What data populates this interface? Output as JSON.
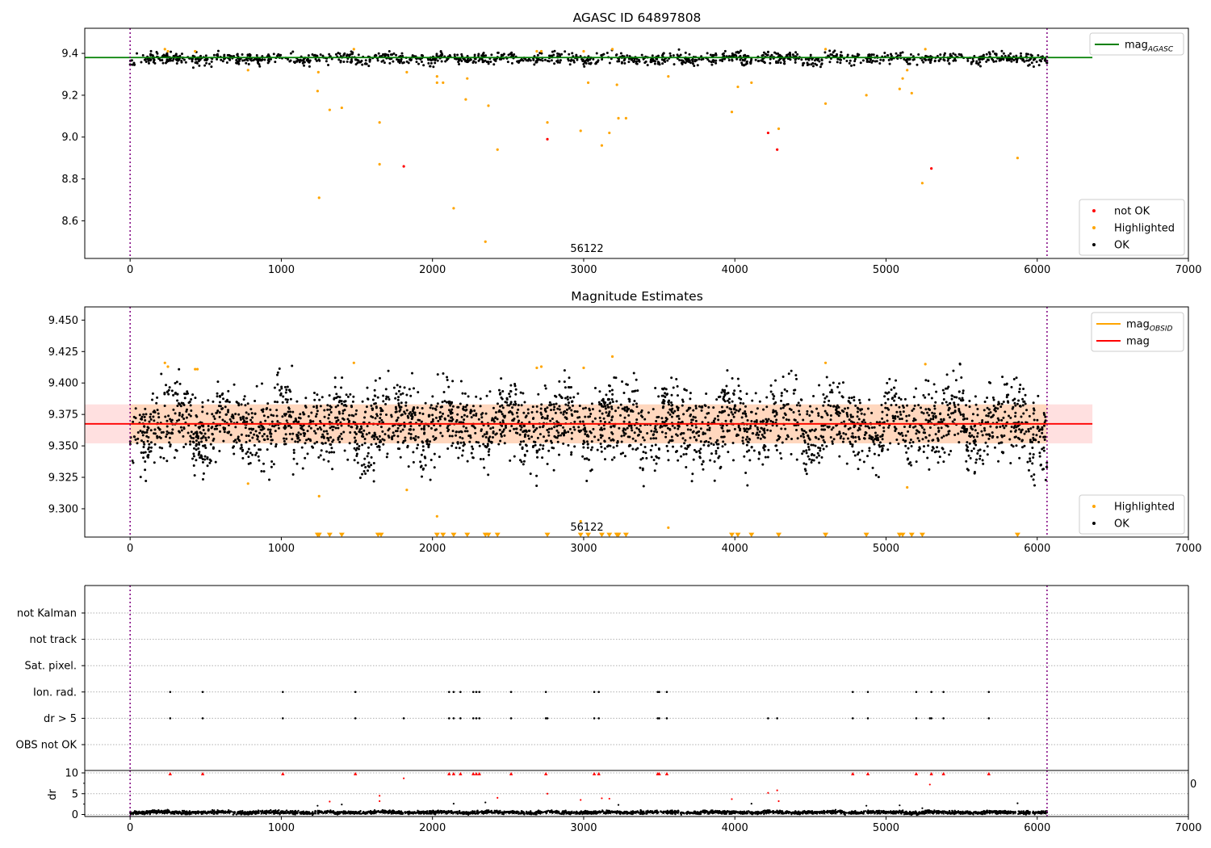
{
  "chart_data": [
    {
      "type": "scatter",
      "title": "AGASC ID 64897808",
      "xlim": [
        -300,
        7000
      ],
      "ylim": [
        8.42,
        9.52
      ],
      "xticks": [
        0,
        1000,
        2000,
        3000,
        4000,
        5000,
        6000,
        7000
      ],
      "yticks": [
        8.6,
        8.8,
        9.0,
        9.2,
        9.4
      ],
      "vlines": [
        0,
        6065
      ],
      "annotation": "56122",
      "lines": [
        {
          "name": "mag_AGASC",
          "name_main": "mag",
          "name_sub": "AGASC",
          "y": 9.38,
          "x": [
            -300,
            6365
          ],
          "color": "#008000"
        }
      ],
      "legends": [
        {
          "entries": [
            {
              "label": "mag",
              "sub": "AGASC",
              "kind": "line",
              "color": "#008000"
            }
          ]
        },
        {
          "entries": [
            {
              "label": "not OK",
              "kind": "dot",
              "color": "#ff0000"
            },
            {
              "label": "Highlighted",
              "kind": "dot",
              "color": "#ffa500"
            },
            {
              "label": "OK",
              "kind": "dot",
              "color": "#000000"
            }
          ]
        }
      ],
      "ok_band": {
        "center": 9.375,
        "halfwidth": 0.025,
        "n": 1300,
        "x_range": [
          0,
          6065
        ]
      },
      "series": [
        {
          "name": "Highlighted",
          "color": "#ffa500",
          "points": [
            [
              230,
              9.42
            ],
            [
              250,
              9.41
            ],
            [
              430,
              9.41
            ],
            [
              780,
              9.32
            ],
            [
              1240,
              9.22
            ],
            [
              1245,
              9.31
            ],
            [
              1250,
              8.71
            ],
            [
              1320,
              9.13
            ],
            [
              1400,
              9.14
            ],
            [
              1480,
              9.42
            ],
            [
              1650,
              9.07
            ],
            [
              1650,
              8.87
            ],
            [
              1830,
              9.31
            ],
            [
              2030,
              9.26
            ],
            [
              2030,
              9.29
            ],
            [
              2070,
              9.26
            ],
            [
              2140,
              8.66
            ],
            [
              2220,
              9.18
            ],
            [
              2230,
              9.28
            ],
            [
              2350,
              8.5
            ],
            [
              2370,
              9.15
            ],
            [
              2430,
              8.94
            ],
            [
              2690,
              9.41
            ],
            [
              2720,
              9.41
            ],
            [
              2760,
              9.07
            ],
            [
              2980,
              9.03
            ],
            [
              3000,
              9.41
            ],
            [
              3030,
              9.26
            ],
            [
              3120,
              8.96
            ],
            [
              3170,
              9.02
            ],
            [
              3190,
              9.42
            ],
            [
              3220,
              9.25
            ],
            [
              3230,
              9.09
            ],
            [
              3280,
              9.09
            ],
            [
              3560,
              9.29
            ],
            [
              3980,
              9.12
            ],
            [
              4020,
              9.24
            ],
            [
              4110,
              9.26
            ],
            [
              4290,
              9.04
            ],
            [
              4600,
              9.42
            ],
            [
              4600,
              9.16
            ],
            [
              4870,
              9.2
            ],
            [
              5090,
              9.23
            ],
            [
              5110,
              9.28
            ],
            [
              5140,
              9.32
            ],
            [
              5170,
              9.21
            ],
            [
              5240,
              8.78
            ],
            [
              5260,
              9.42
            ],
            [
              5870,
              8.9
            ]
          ]
        },
        {
          "name": "not OK",
          "color": "#ff0000",
          "points": [
            [
              1810,
              8.86
            ],
            [
              2760,
              8.99
            ],
            [
              4220,
              9.02
            ],
            [
              4280,
              8.94
            ],
            [
              5300,
              8.85
            ]
          ]
        }
      ]
    },
    {
      "type": "scatter",
      "title": "Magnitude Estimates",
      "xlim": [
        -300,
        7000
      ],
      "ylim": [
        9.2775,
        9.4605
      ],
      "xticks": [
        0,
        1000,
        2000,
        3000,
        4000,
        5000,
        6000,
        7000
      ],
      "yticks": [
        9.3,
        9.325,
        9.35,
        9.375,
        9.4,
        9.425,
        9.45
      ],
      "vlines": [
        0,
        6065
      ],
      "annotation": "56122",
      "band": {
        "y0": 9.352,
        "y1": 9.383,
        "x": [
          -300,
          6365
        ]
      },
      "lines": [
        {
          "name": "mag_OBSID",
          "name_main": "mag",
          "name_sub": "OBSID",
          "y": 9.3675,
          "x": [
            0,
            6065
          ],
          "color": "#ffa500"
        },
        {
          "name": "mag",
          "y": 9.3675,
          "x": [
            -300,
            6365
          ],
          "color": "#ff0000"
        }
      ],
      "legends": [
        {
          "entries": [
            {
              "label": "mag",
              "sub": "OBSID",
              "kind": "line",
              "color": "#ffa500"
            },
            {
              "label": "mag",
              "kind": "line",
              "color": "#ff0000"
            }
          ]
        },
        {
          "entries": [
            {
              "label": "Highlighted",
              "kind": "dot",
              "color": "#ffa500"
            },
            {
              "label": "OK",
              "kind": "dot",
              "color": "#000000"
            }
          ]
        }
      ],
      "ok_band": {
        "center": 9.367,
        "halfwidth": 0.028,
        "n": 3200,
        "x_range": [
          0,
          6065
        ]
      },
      "series": [
        {
          "name": "Highlighted",
          "color": "#ffa500",
          "points": [
            [
              230,
              9.416
            ],
            [
              250,
              9.413
            ],
            [
              430,
              9.411
            ],
            [
              445,
              9.411
            ],
            [
              780,
              9.32
            ],
            [
              1250,
              9.31
            ],
            [
              1480,
              9.416
            ],
            [
              1830,
              9.315
            ],
            [
              2030,
              9.294
            ],
            [
              2690,
              9.412
            ],
            [
              2720,
              9.413
            ],
            [
              2980,
              9.29
            ],
            [
              3000,
              9.412
            ],
            [
              3190,
              9.421
            ],
            [
              3560,
              9.285
            ],
            [
              4600,
              9.416
            ],
            [
              5140,
              9.317
            ],
            [
              5260,
              9.415
            ]
          ]
        },
        {
          "name": "Highlighted (below axis)",
          "color": "#ffa500",
          "marker": "triangle-down",
          "points": [
            [
              1240,
              9.279
            ],
            [
              1250,
              9.279
            ],
            [
              1320,
              9.279
            ],
            [
              1400,
              9.279
            ],
            [
              1640,
              9.279
            ],
            [
              1660,
              9.279
            ],
            [
              2030,
              9.279
            ],
            [
              2070,
              9.279
            ],
            [
              2140,
              9.279
            ],
            [
              2230,
              9.279
            ],
            [
              2350,
              9.279
            ],
            [
              2370,
              9.279
            ],
            [
              2430,
              9.279
            ],
            [
              2760,
              9.279
            ],
            [
              2980,
              9.279
            ],
            [
              3030,
              9.279
            ],
            [
              3120,
              9.279
            ],
            [
              3170,
              9.279
            ],
            [
              3220,
              9.279
            ],
            [
              3230,
              9.279
            ],
            [
              3280,
              9.279
            ],
            [
              3980,
              9.279
            ],
            [
              4020,
              9.279
            ],
            [
              4110,
              9.279
            ],
            [
              4290,
              9.279
            ],
            [
              4600,
              9.279
            ],
            [
              4870,
              9.279
            ],
            [
              5090,
              9.279
            ],
            [
              5110,
              9.279
            ],
            [
              5170,
              9.279
            ],
            [
              5240,
              9.279
            ],
            [
              5870,
              9.279
            ]
          ]
        }
      ]
    },
    {
      "type": "scatter",
      "title": "",
      "xlim": [
        -300,
        7000
      ],
      "categories": [
        "not Kalman",
        "not track",
        "Sat. pixel.",
        "Ion. rad.",
        "dr > 5",
        "OBS not OK"
      ],
      "vlines": [
        0,
        6065
      ],
      "flags": [
        {
          "category": "Ion. rad.",
          "x": [
            265,
            480,
            1010,
            1490,
            2110,
            2140,
            2185,
            2270,
            2290,
            2310,
            2520,
            2750,
            3070,
            3100,
            3490,
            3500,
            3550,
            4780,
            4880,
            5200,
            5300,
            5380,
            5680
          ]
        },
        {
          "category": "dr > 5",
          "x": [
            265,
            480,
            1010,
            1490,
            1810,
            2110,
            2140,
            2185,
            2270,
            2290,
            2310,
            2520,
            2750,
            2760,
            3070,
            3100,
            3490,
            3500,
            3550,
            4220,
            4280,
            4780,
            4880,
            5200,
            5290,
            5300,
            5380,
            5680
          ]
        }
      ]
    },
    {
      "type": "scatter",
      "title": "",
      "ylabel": "dr",
      "xlim": [
        -300,
        7000
      ],
      "ylim": [
        -0.5,
        10.5
      ],
      "xticks": [
        0,
        1000,
        2000,
        3000,
        4000,
        5000,
        6000,
        7000
      ],
      "yticks": [
        0,
        5,
        10
      ],
      "vlines": [
        0,
        6065
      ],
      "clipped_tick_label": "0",
      "ok_band": {
        "center": 0.5,
        "halfwidth": 0.35,
        "n": 3200,
        "x_range": [
          0,
          6065
        ]
      },
      "series": [
        {
          "name": "dr > 10",
          "color": "#ff0000",
          "marker": "triangle-up",
          "points": [
            [
              265,
              9.8
            ],
            [
              480,
              9.8
            ],
            [
              1010,
              9.8
            ],
            [
              1490,
              9.8
            ],
            [
              2110,
              9.8
            ],
            [
              2140,
              9.8
            ],
            [
              2185,
              9.8
            ],
            [
              2270,
              9.8
            ],
            [
              2290,
              9.8
            ],
            [
              2310,
              9.8
            ],
            [
              2520,
              9.8
            ],
            [
              2750,
              9.8
            ],
            [
              3070,
              9.8
            ],
            [
              3100,
              9.8
            ],
            [
              3490,
              9.8
            ],
            [
              3500,
              9.8
            ],
            [
              3550,
              9.8
            ],
            [
              4780,
              9.8
            ],
            [
              4880,
              9.8
            ],
            [
              5200,
              9.8
            ],
            [
              5300,
              9.8
            ],
            [
              5380,
              9.8
            ],
            [
              5680,
              9.8
            ]
          ]
        },
        {
          "name": "dr > 5",
          "color": "#ff0000",
          "points": [
            [
              1810,
              8.7
            ],
            [
              2760,
              5.0
            ],
            [
              4220,
              5.2
            ],
            [
              4280,
              5.8
            ],
            [
              5290,
              7.2
            ],
            [
              1650,
              4.5
            ]
          ]
        },
        {
          "name": "dr Highlighted",
          "color": "#ff0000",
          "points": [
            [
              1320,
              3.1
            ],
            [
              1650,
              3.2
            ],
            [
              2430,
              4.0
            ],
            [
              2980,
              3.5
            ],
            [
              3120,
              3.9
            ],
            [
              3170,
              3.8
            ],
            [
              3980,
              3.7
            ],
            [
              4290,
              3.2
            ]
          ]
        },
        {
          "name": "dr OK outliers",
          "color": "#000000",
          "points": [
            [
              1240,
              2.1
            ],
            [
              1400,
              2.4
            ],
            [
              2140,
              2.6
            ],
            [
              2350,
              2.9
            ],
            [
              3230,
              2.3
            ],
            [
              4110,
              2.6
            ],
            [
              4870,
              2.1
            ],
            [
              5090,
              2.2
            ],
            [
              5870,
              2.7
            ],
            [
              5240,
              1.5
            ]
          ]
        }
      ]
    }
  ]
}
